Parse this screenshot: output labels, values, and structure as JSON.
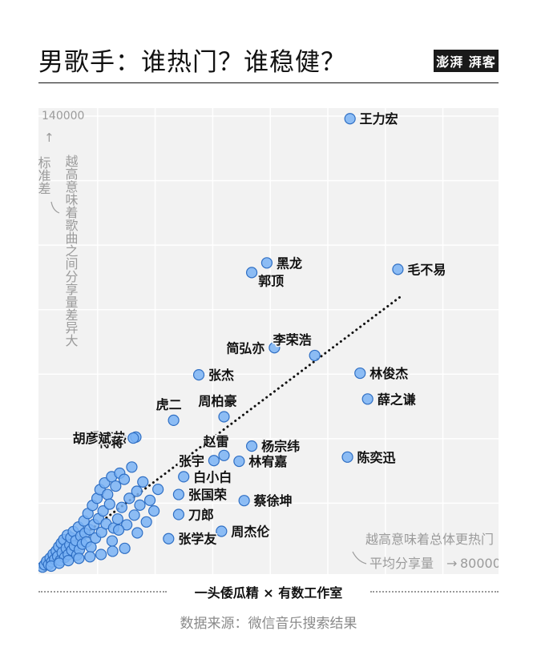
{
  "header": {
    "title": "男歌手：谁热门？谁稳健？",
    "logo_text": "澎湃 湃客"
  },
  "credits": {
    "text": "一头倭瓜精  × 有数工作室"
  },
  "source": "数据来源：微信音乐搜索结果",
  "colors": {
    "point_fill": "#7ab3f5",
    "point_stroke": "#2f6fc4",
    "background": "#f2f2f2",
    "grid": "#ffffff",
    "trend": "#111111"
  },
  "chart_data": {
    "type": "scatter",
    "title": "男歌手：谁热门？谁稳健？",
    "x_axis": {
      "label": "平均分享量",
      "max_label": "80000",
      "note": "越高意味着总体更热门",
      "range": [
        0,
        80000
      ]
    },
    "y_axis": {
      "label": "标准差",
      "max_label": "140000",
      "note": "越高意味着歌曲之间分享量差异大",
      "range": [
        0,
        140000
      ]
    },
    "grid": true,
    "trendline": {
      "x": [
        0,
        71500
      ],
      "y": [
        0,
        84000
      ]
    },
    "labeled_points": [
      {
        "name": "王力宏",
        "x": 61500,
        "y": 139200
      },
      {
        "name": "黑龙",
        "x": 45000,
        "y": 94500
      },
      {
        "name": "郭顶",
        "x": 42000,
        "y": 91500
      },
      {
        "name": "毛不易",
        "x": 71000,
        "y": 92500
      },
      {
        "name": "李荣浩",
        "x": 54500,
        "y": 65800
      },
      {
        "name": "简弘亦",
        "x": 46500,
        "y": 68200
      },
      {
        "name": "张杰",
        "x": 31500,
        "y": 59800
      },
      {
        "name": "林俊杰",
        "x": 63500,
        "y": 60300
      },
      {
        "name": "薛之谦",
        "x": 65000,
        "y": 52300
      },
      {
        "name": "周柏豪",
        "x": 36500,
        "y": 46800
      },
      {
        "name": "虎二",
        "x": 26500,
        "y": 45700
      },
      {
        "name": "那吾克热",
        "x": 19000,
        "y": 40500
      },
      {
        "name": "蒋蒋",
        "x": 18500,
        "y": 40200
      },
      {
        "name": "赵雷",
        "x": 36500,
        "y": 34800
      },
      {
        "name": "杨宗纬",
        "x": 42000,
        "y": 37700
      },
      {
        "name": "张宇",
        "x": 34500,
        "y": 33200
      },
      {
        "name": "林宥嘉",
        "x": 39500,
        "y": 33000
      },
      {
        "name": "陈奕迅",
        "x": 61000,
        "y": 34300
      },
      {
        "name": "胡彦斌",
        "x": 16000,
        "y": 40200
      },
      {
        "name": "白小白",
        "x": 28500,
        "y": 28200
      },
      {
        "name": "张国荣",
        "x": 27500,
        "y": 22700
      },
      {
        "name": "蔡徐坤",
        "x": 40500,
        "y": 20800
      },
      {
        "name": "刀郎",
        "x": 27500,
        "y": 16500
      },
      {
        "name": "周杰伦",
        "x": 36000,
        "y": 11300
      },
      {
        "name": "张学友",
        "x": 25500,
        "y": 9000
      }
    ],
    "other_points": [
      {
        "x": 500,
        "y": 200
      },
      {
        "x": 900,
        "y": 900
      },
      {
        "x": 1300,
        "y": 2000
      },
      {
        "x": 1700,
        "y": 1000
      },
      {
        "x": 2000,
        "y": 3000
      },
      {
        "x": 2300,
        "y": 1800
      },
      {
        "x": 2600,
        "y": 4200
      },
      {
        "x": 2900,
        "y": 2600
      },
      {
        "x": 3200,
        "y": 5200
      },
      {
        "x": 3500,
        "y": 3500
      },
      {
        "x": 3700,
        "y": 6500
      },
      {
        "x": 4000,
        "y": 2200
      },
      {
        "x": 4200,
        "y": 7600
      },
      {
        "x": 4400,
        "y": 4700
      },
      {
        "x": 4700,
        "y": 8700
      },
      {
        "x": 4900,
        "y": 3200
      },
      {
        "x": 5200,
        "y": 6000
      },
      {
        "x": 5400,
        "y": 10100
      },
      {
        "x": 5600,
        "y": 4100
      },
      {
        "x": 5900,
        "y": 7100
      },
      {
        "x": 6100,
        "y": 9300
      },
      {
        "x": 6300,
        "y": 5400
      },
      {
        "x": 6600,
        "y": 11200
      },
      {
        "x": 6800,
        "y": 6800
      },
      {
        "x": 7100,
        "y": 8400
      },
      {
        "x": 7300,
        "y": 3900
      },
      {
        "x": 7600,
        "y": 12600
      },
      {
        "x": 7800,
        "y": 5600
      },
      {
        "x": 8100,
        "y": 9800
      },
      {
        "x": 8400,
        "y": 7300
      },
      {
        "x": 8700,
        "y": 14500
      },
      {
        "x": 8900,
        "y": 10700
      },
      {
        "x": 9200,
        "y": 8000
      },
      {
        "x": 9500,
        "y": 16800
      },
      {
        "x": 9800,
        "y": 11800
      },
      {
        "x": 10100,
        "y": 6400
      },
      {
        "x": 10400,
        "y": 19300
      },
      {
        "x": 10700,
        "y": 13400
      },
      {
        "x": 11000,
        "y": 9200
      },
      {
        "x": 11300,
        "y": 21500
      },
      {
        "x": 11600,
        "y": 15200
      },
      {
        "x": 11900,
        "y": 24200
      },
      {
        "x": 12200,
        "y": 11000
      },
      {
        "x": 12500,
        "y": 17600
      },
      {
        "x": 12800,
        "y": 26300
      },
      {
        "x": 13100,
        "y": 13600
      },
      {
        "x": 13400,
        "y": 22700
      },
      {
        "x": 13800,
        "y": 19700
      },
      {
        "x": 14200,
        "y": 28200
      },
      {
        "x": 14600,
        "y": 12300
      },
      {
        "x": 15000,
        "y": 25300
      },
      {
        "x": 15400,
        "y": 15100
      },
      {
        "x": 15800,
        "y": 29300
      },
      {
        "x": 16200,
        "y": 18700
      },
      {
        "x": 16700,
        "y": 27400
      },
      {
        "x": 17200,
        "y": 13300
      },
      {
        "x": 17700,
        "y": 21500
      },
      {
        "x": 18200,
        "y": 31200
      },
      {
        "x": 18700,
        "y": 16300
      },
      {
        "x": 19200,
        "y": 23700
      },
      {
        "x": 19800,
        "y": 19400
      },
      {
        "x": 20400,
        "y": 26600
      },
      {
        "x": 21100,
        "y": 14200
      },
      {
        "x": 21800,
        "y": 20900
      },
      {
        "x": 22600,
        "y": 17600
      },
      {
        "x": 23400,
        "y": 24300
      },
      {
        "x": 14300,
        "y": 8300
      },
      {
        "x": 15600,
        "y": 11700
      },
      {
        "x": 2200,
        "y": 500
      },
      {
        "x": 3800,
        "y": 1400
      },
      {
        "x": 5600,
        "y": 2200
      },
      {
        "x": 7700,
        "y": 2900
      },
      {
        "x": 9900,
        "y": 3400
      },
      {
        "x": 12100,
        "y": 4100
      },
      {
        "x": 14400,
        "y": 5100
      },
      {
        "x": 16800,
        "y": 6000
      },
      {
        "x": 19300,
        "y": 10800
      }
    ]
  }
}
